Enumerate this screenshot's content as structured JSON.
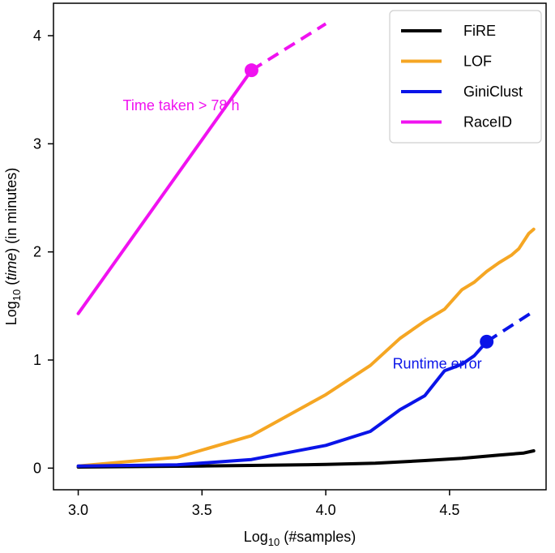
{
  "chart_data": {
    "type": "line",
    "xlabel": {
      "base": "Log",
      "sub": "10",
      "rest": " (#samples)"
    },
    "ylabel": {
      "base": "Log",
      "sub": "10",
      "pre": " (",
      "ital": "time",
      "post": ") (in minutes)"
    },
    "xlim": [
      2.9,
      4.89
    ],
    "ylim": [
      -0.2,
      4.3
    ],
    "xticks": [
      3.0,
      3.5,
      4.0,
      4.5
    ],
    "xtick_labels": [
      "3.0",
      "3.5",
      "4.0",
      "4.5"
    ],
    "yticks": [
      0,
      1,
      2,
      3,
      4
    ],
    "ytick_labels": [
      "0",
      "1",
      "2",
      "3",
      "4"
    ],
    "grid": false,
    "legend_position": "top-right",
    "series": [
      {
        "name": "FiRE",
        "color": "#000000",
        "x": [
          3.0,
          3.3,
          3.5,
          3.7,
          3.9,
          4.0,
          4.2,
          4.4,
          4.55,
          4.7,
          4.8,
          4.84
        ],
        "y": [
          0.01,
          0.015,
          0.02,
          0.025,
          0.03,
          0.035,
          0.045,
          0.07,
          0.09,
          0.12,
          0.14,
          0.16
        ]
      },
      {
        "name": "LOF",
        "color": "#F5A623",
        "x": [
          3.0,
          3.2,
          3.4,
          3.7,
          4.0,
          4.18,
          4.3,
          4.4,
          4.48,
          4.55,
          4.6,
          4.65,
          4.7,
          4.75,
          4.78,
          4.82,
          4.84
        ],
        "y": [
          0.02,
          0.06,
          0.1,
          0.3,
          0.68,
          0.95,
          1.2,
          1.36,
          1.47,
          1.65,
          1.72,
          1.82,
          1.9,
          1.97,
          2.03,
          2.17,
          2.21
        ]
      },
      {
        "name": "GiniClust",
        "color": "#0A14E8",
        "x": [
          3.0,
          3.4,
          3.7,
          4.0,
          4.18,
          4.3,
          4.4,
          4.48,
          4.55,
          4.6,
          4.65
        ],
        "y": [
          0.02,
          0.03,
          0.08,
          0.21,
          0.34,
          0.54,
          0.67,
          0.9,
          0.96,
          1.04,
          1.17
        ],
        "extrapolated": {
          "x": [
            4.65,
            4.84
          ],
          "y": [
            1.17,
            1.45
          ]
        },
        "marker": {
          "x": 4.65,
          "y": 1.17
        }
      },
      {
        "name": "RaceID",
        "color": "#F012F0",
        "x": [
          3.0,
          3.7
        ],
        "y": [
          1.43,
          3.68
        ],
        "extrapolated": {
          "x": [
            3.7,
            4.0
          ],
          "y": [
            3.68,
            4.11
          ]
        },
        "marker": {
          "x": 3.7,
          "y": 3.68
        }
      }
    ],
    "annotations": [
      {
        "text": "Time taken > 78 h",
        "x": 3.18,
        "y": 3.31,
        "color": "#F012F0"
      },
      {
        "text": "Runtime error",
        "x": 4.27,
        "y": 0.92,
        "color": "#0A14E8"
      }
    ]
  }
}
